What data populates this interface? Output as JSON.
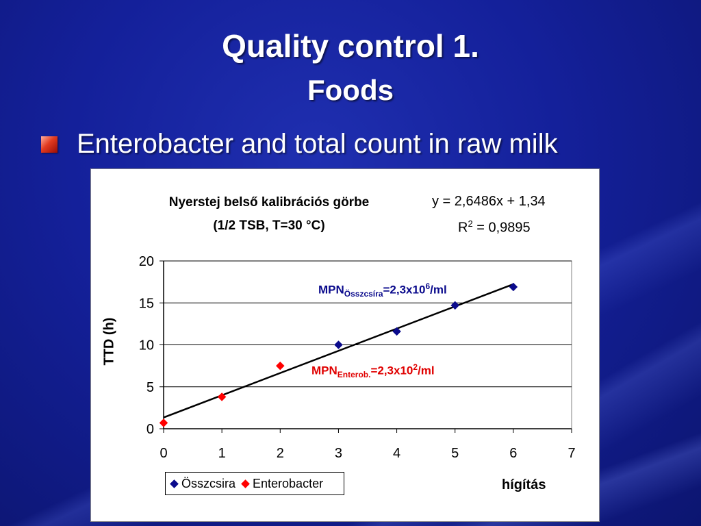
{
  "slide": {
    "title": "Quality control 1.",
    "subtitle": "Foods",
    "bullet": "Enterobacter and total count in raw milk"
  },
  "colors": {
    "series_osszcsira": "#0a0a8c",
    "series_enterobacter": "#ff0000",
    "annotation_osszcsira": "#0a0a8c",
    "annotation_enterobacter": "#e00000"
  },
  "chart_data": {
    "type": "scatter",
    "title_line1": "Nyerstej  belső kalibrációs görbe",
    "title_line2": "(1/2 TSB, T=30 °C)",
    "equation": "y = 2,6486x + 1,34",
    "r2_prefix": "R",
    "r2_sup": "2",
    "r2_value": " = 0,9895",
    "xlabel": "hígítás",
    "ylabel": "TTD (h)",
    "xlim": [
      0,
      7
    ],
    "ylim": [
      0,
      20
    ],
    "xticks": [
      "0",
      "1",
      "2",
      "3",
      "4",
      "5",
      "6",
      "7"
    ],
    "yticks": [
      "0",
      "5",
      "10",
      "15",
      "20"
    ],
    "grid": "horizontal",
    "legend_position": "bottom-left",
    "trendline": {
      "slope": 2.6486,
      "intercept": 1.34,
      "x_range": [
        0,
        6
      ]
    },
    "series": [
      {
        "name": "Összcsira",
        "points": [
          [
            3,
            10.0
          ],
          [
            4,
            11.6
          ],
          [
            5,
            14.7
          ],
          [
            6,
            16.9
          ]
        ]
      },
      {
        "name": "Enterobacter",
        "points": [
          [
            0,
            0.7
          ],
          [
            1,
            3.8
          ],
          [
            2,
            7.5
          ]
        ]
      }
    ],
    "annotations": {
      "osszcsira": {
        "main": "MPN",
        "sub": "Összcsíra",
        "mid": "=2,3x10",
        "sup": "6",
        "tail": "/ml"
      },
      "enterobacter": {
        "main": "MPN",
        "sub": "Enterob.",
        "mid": "=2,3x10",
        "sup": "2",
        "tail": "/ml"
      }
    }
  }
}
